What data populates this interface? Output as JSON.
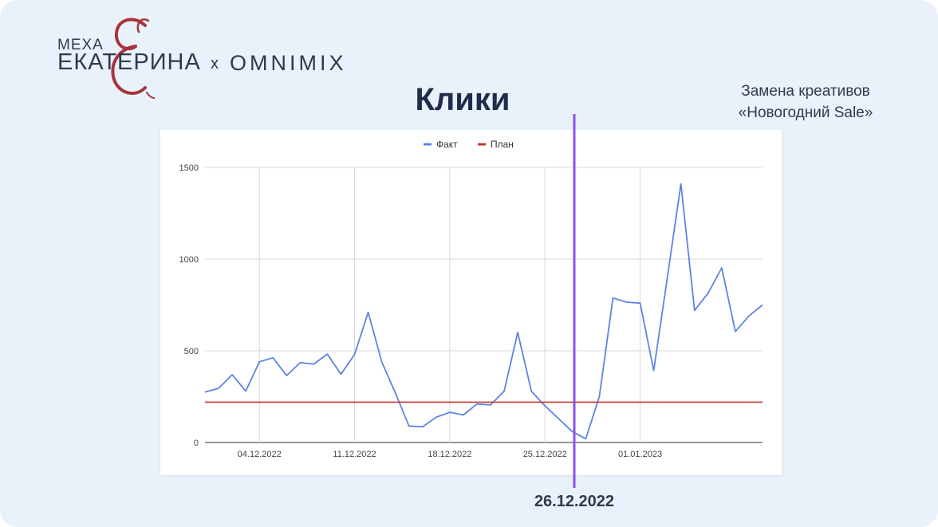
{
  "logo": {
    "line1": "МЕХА",
    "line2": "ЕКАТЕРИНА",
    "separator": "x",
    "partner": "OMNIMIX"
  },
  "title": "Клики",
  "annotation": {
    "line1": "Замена креативов",
    "line2": "«Новогодний Sale»"
  },
  "marker_date": "26.12.2022",
  "colors": {
    "background": "#e9f1fa",
    "fact": "#5b84e3",
    "plan": "#c0392b",
    "marker_start": "#b040e0",
    "marker_end": "#6d7ff0",
    "title": "#1f2d4c"
  },
  "chart_data": {
    "type": "line",
    "title": "",
    "xlabel": "",
    "ylabel": "",
    "legend_position": "top",
    "grid": true,
    "ylim": [
      0,
      1500
    ],
    "yticks": [
      0,
      500,
      1000,
      1500
    ],
    "x_start": "30.11.2022",
    "x_ticks": [
      {
        "label": "04.12.2022",
        "date": "04.12.2022"
      },
      {
        "label": "11.12.2022",
        "date": "11.12.2022"
      },
      {
        "label": "18.12.2022",
        "date": "18.12.2022"
      },
      {
        "label": "25.12.2022",
        "date": "25.12.2022"
      },
      {
        "label": "01.01.2023",
        "date": "01.01.2023"
      }
    ],
    "series": [
      {
        "name": "Факт",
        "values": [
          275,
          295,
          370,
          280,
          440,
          462,
          365,
          435,
          428,
          482,
          372,
          480,
          710,
          440,
          270,
          90,
          85,
          138,
          165,
          150,
          210,
          205,
          280,
          600,
          280,
          200,
          130,
          60,
          20,
          250,
          788,
          765,
          760,
          392,
          900,
          1410,
          720,
          815,
          952,
          605,
          690,
          750
        ]
      },
      {
        "name": "План",
        "values": [
          220,
          220,
          220,
          220,
          220,
          220,
          220,
          220,
          220,
          220,
          220,
          220,
          220,
          220,
          220,
          220,
          220,
          220,
          220,
          220,
          220,
          220,
          220,
          220,
          220,
          220,
          220,
          220,
          220,
          220,
          220,
          220,
          220,
          220,
          220,
          220,
          220,
          220,
          220,
          220,
          220,
          220
        ]
      }
    ]
  }
}
